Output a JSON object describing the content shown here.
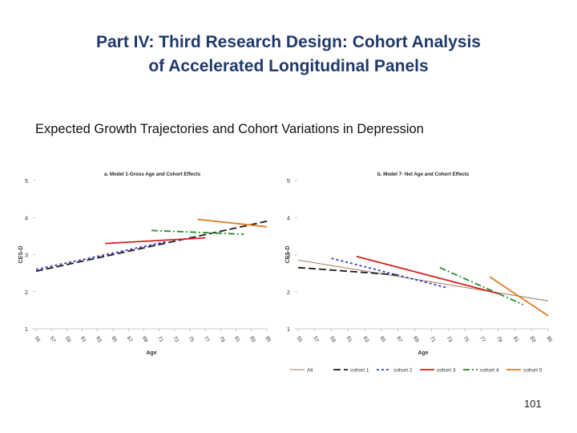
{
  "slide": {
    "title_line1": "Part IV:  Third Research Design: Cohort Analysis",
    "title_line2": "of Accelerated Longitudinal Panels",
    "subtitle": "Expected Growth Trajectories and Cohort Variations in Depression",
    "page_number": "101"
  },
  "colors": {
    "title": "#1f3a6b",
    "All": "#a07a5a",
    "cohort 1": "#1a1a1a",
    "cohort 2": "#3b3bc8",
    "cohort 3": "#d42020",
    "cohort 4": "#2a8a2a",
    "cohort 5": "#e07a20"
  },
  "chart_data": [
    {
      "type": "line",
      "title": "a. Model 1-Gross Age and Cohort Effects",
      "xlabel": "Age",
      "ylabel": "CES-D",
      "ylim": [
        1,
        5
      ],
      "yticks": [
        "1",
        "2",
        "3",
        "4",
        "5"
      ],
      "xlim": [
        55,
        85
      ],
      "xticks": [
        "55",
        "57",
        "59",
        "61",
        "63",
        "65",
        "67",
        "69",
        "71",
        "73",
        "75",
        "77",
        "79",
        "81",
        "83",
        "85"
      ],
      "series": [
        {
          "name": "cohort 1",
          "style": "dashed",
          "x": [
            55,
            85
          ],
          "y": [
            2.55,
            3.9
          ]
        },
        {
          "name": "cohort 2",
          "style": "dotted",
          "x": [
            55,
            72
          ],
          "y": [
            2.6,
            3.35
          ]
        },
        {
          "name": "cohort 3",
          "style": "solid",
          "x": [
            64,
            77
          ],
          "y": [
            3.3,
            3.45
          ]
        },
        {
          "name": "cohort 4",
          "style": "dashdot",
          "x": [
            70,
            82
          ],
          "y": [
            3.65,
            3.55
          ]
        },
        {
          "name": "cohort 5",
          "style": "solid",
          "x": [
            76,
            85
          ],
          "y": [
            3.95,
            3.75
          ]
        }
      ]
    },
    {
      "type": "line",
      "title": "b. Model 7- Net Age and Cohort Effects",
      "xlabel": "Age",
      "ylabel": "CES-D",
      "ylim": [
        1,
        5
      ],
      "yticks": [
        "1",
        "2",
        "3",
        "4",
        "5"
      ],
      "xlim": [
        55,
        85
      ],
      "xticks": [
        "55",
        "57",
        "59",
        "61",
        "63",
        "65",
        "67",
        "69",
        "71",
        "73",
        "75",
        "77",
        "79",
        "81",
        "83",
        "85"
      ],
      "series": [
        {
          "name": "All",
          "style": "solid",
          "x": [
            55,
            85
          ],
          "y": [
            2.85,
            1.75
          ]
        },
        {
          "name": "cohort 1",
          "style": "dashed",
          "x": [
            55,
            67
          ],
          "y": [
            2.65,
            2.45
          ]
        },
        {
          "name": "cohort 2",
          "style": "dotted",
          "x": [
            59,
            73
          ],
          "y": [
            2.9,
            2.1
          ]
        },
        {
          "name": "cohort 3",
          "style": "solid",
          "x": [
            62,
            79
          ],
          "y": [
            2.95,
            1.95
          ]
        },
        {
          "name": "cohort 4",
          "style": "dashdot",
          "x": [
            72,
            82
          ],
          "y": [
            2.65,
            1.65
          ]
        },
        {
          "name": "cohort 5",
          "style": "solid",
          "x": [
            78,
            85
          ],
          "y": [
            2.4,
            1.35
          ]
        }
      ],
      "legend": {
        "placement": "bottom",
        "entries": [
          "All",
          "cohort 1",
          "cohort 2",
          "cohort 3",
          "cohort 4",
          "cohort 5"
        ]
      }
    }
  ]
}
